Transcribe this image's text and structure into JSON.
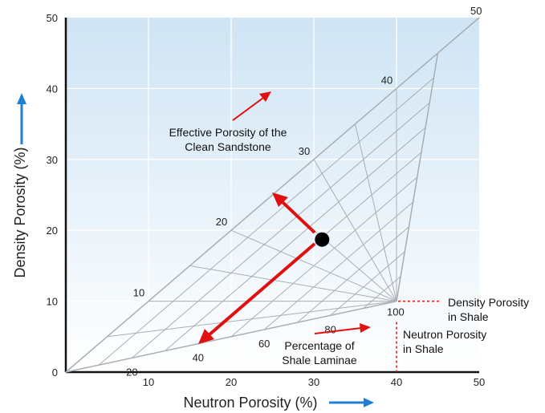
{
  "chart_data": {
    "type": "scatter",
    "xlabel": "Neutron Porosity (%)",
    "ylabel": "Density Porosity (%)",
    "xlim": [
      0,
      50
    ],
    "ylim": [
      0,
      50
    ],
    "x_ticks": [
      "10",
      "20",
      "30",
      "40",
      "50"
    ],
    "y_ticks": [
      "0",
      "10",
      "20",
      "30",
      "40",
      "50"
    ],
    "diagonal_end_label": "50",
    "shale_point": {
      "x": 40,
      "y": 10,
      "label": "100"
    },
    "scales": {
      "porosity": [
        {
          "label": "10",
          "x": 10,
          "y": 10
        },
        {
          "label": "20",
          "x": 20,
          "y": 20
        },
        {
          "label": "30",
          "x": 30,
          "y": 30
        },
        {
          "label": "40",
          "x": 40,
          "y": 40
        }
      ],
      "lamina": [
        {
          "label": "20",
          "x": 8,
          "y": 2
        },
        {
          "label": "40",
          "x": 16,
          "y": 4
        },
        {
          "label": "60",
          "x": 24,
          "y": 6
        },
        {
          "label": "80",
          "x": 32,
          "y": 8
        }
      ]
    },
    "sample_point": {
      "x": 31,
      "y": 18.7
    },
    "annotations": {
      "effective_porosity": [
        "Effective Porosity of the",
        "Clean Sandstone"
      ],
      "percentage_laminae": [
        "Percentage of",
        "Shale Laminae"
      ],
      "density_porosity_shale": [
        "Density Porosity",
        "in Shale"
      ],
      "neutron_porosity_shale": [
        "Neutron Porosity",
        "in Shale"
      ]
    },
    "colors": {
      "plot_background_top": "#cfe4f4",
      "plot_background_bottom": "#ffffff",
      "grid": "#a8aeb3",
      "arrow": "#e01010",
      "axis_arrow": "#1f7fd0",
      "point": "#000000"
    }
  }
}
